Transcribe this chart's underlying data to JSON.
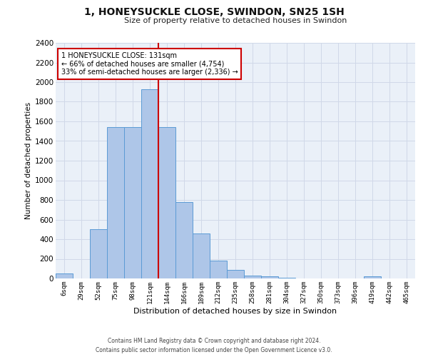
{
  "title": "1, HONEYSUCKLE CLOSE, SWINDON, SN25 1SH",
  "subtitle": "Size of property relative to detached houses in Swindon",
  "xlabel": "Distribution of detached houses by size in Swindon",
  "ylabel": "Number of detached properties",
  "categories": [
    "6sqm",
    "29sqm",
    "52sqm",
    "75sqm",
    "98sqm",
    "121sqm",
    "144sqm",
    "166sqm",
    "189sqm",
    "212sqm",
    "235sqm",
    "258sqm",
    "281sqm",
    "304sqm",
    "327sqm",
    "350sqm",
    "373sqm",
    "396sqm",
    "419sqm",
    "442sqm",
    "465sqm"
  ],
  "bar_values": [
    50,
    0,
    500,
    1540,
    1540,
    1930,
    1540,
    780,
    460,
    185,
    90,
    30,
    25,
    5,
    0,
    0,
    0,
    0,
    20,
    0,
    0
  ],
  "bar_color": "#aec6e8",
  "bar_edge_color": "#5b9bd5",
  "red_line_index": 5.5,
  "annotation_title": "1 HONEYSUCKLE CLOSE: 131sqm",
  "annotation_line1": "← 66% of detached houses are smaller (4,754)",
  "annotation_line2": "33% of semi-detached houses are larger (2,336) →",
  "annotation_box_color": "#ffffff",
  "annotation_box_edge_color": "#cc0000",
  "red_line_color": "#cc0000",
  "ylim": [
    0,
    2400
  ],
  "yticks": [
    0,
    200,
    400,
    600,
    800,
    1000,
    1200,
    1400,
    1600,
    1800,
    2000,
    2200,
    2400
  ],
  "grid_color": "#d0d8e8",
  "background_color": "#eaf0f8",
  "footer_line1": "Contains HM Land Registry data © Crown copyright and database right 2024.",
  "footer_line2": "Contains public sector information licensed under the Open Government Licence v3.0."
}
